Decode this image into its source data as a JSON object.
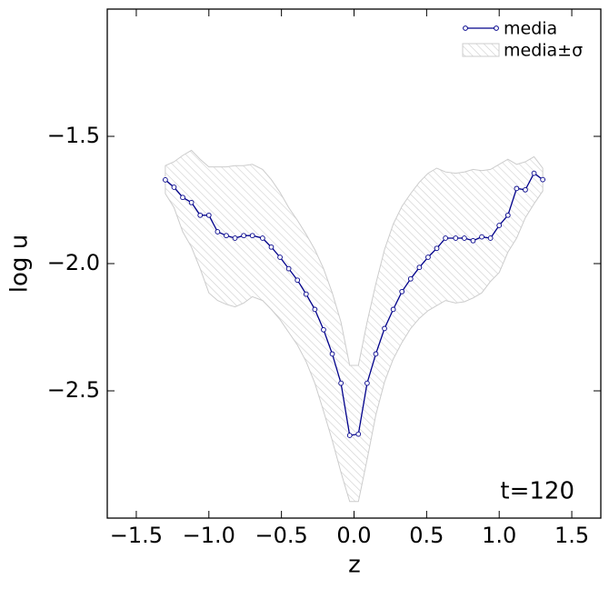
{
  "chart_data": {
    "type": "line_band",
    "xlabel": "z",
    "ylabel": "log u",
    "annotation": "t=120",
    "x": [
      -1.3,
      -1.24,
      -1.18,
      -1.12,
      -1.06,
      -1.0,
      -0.94,
      -0.88,
      -0.82,
      -0.76,
      -0.7,
      -0.63,
      -0.57,
      -0.51,
      -0.45,
      -0.39,
      -0.33,
      -0.27,
      -0.21,
      -0.15,
      -0.09,
      -0.03,
      0.03,
      0.09,
      0.15,
      0.21,
      0.27,
      0.33,
      0.39,
      0.45,
      0.51,
      0.57,
      0.63,
      0.7,
      0.76,
      0.82,
      0.88,
      0.94,
      1.0,
      1.06,
      1.12,
      1.18,
      1.24,
      1.3
    ],
    "series": [
      {
        "name": "media",
        "color": "#00008b",
        "values": [
          -1.671,
          -1.7,
          -1.74,
          -1.76,
          -1.81,
          -1.81,
          -1.875,
          -1.89,
          -1.9,
          -1.89,
          -1.89,
          -1.9,
          -1.935,
          -1.975,
          -2.02,
          -2.065,
          -2.12,
          -2.18,
          -2.26,
          -2.355,
          -2.47,
          -2.675,
          -2.67,
          -2.47,
          -2.355,
          -2.255,
          -2.18,
          -2.11,
          -2.06,
          -2.015,
          -1.975,
          -1.94,
          -1.9,
          -1.9,
          -1.9,
          -1.91,
          -1.895,
          -1.9,
          -1.85,
          -1.81,
          -1.705,
          -1.71,
          -1.645,
          -1.67
        ]
      },
      {
        "name": "media±σ",
        "color": "#cccccc",
        "upper": [
          -1.615,
          -1.6,
          -1.575,
          -1.555,
          -1.59,
          -1.62,
          -1.62,
          -1.62,
          -1.615,
          -1.615,
          -1.61,
          -1.63,
          -1.67,
          -1.72,
          -1.78,
          -1.83,
          -1.885,
          -1.945,
          -2.02,
          -2.115,
          -2.23,
          -2.4,
          -2.4,
          -2.23,
          -2.08,
          -1.945,
          -1.845,
          -1.775,
          -1.725,
          -1.68,
          -1.645,
          -1.625,
          -1.64,
          -1.645,
          -1.64,
          -1.63,
          -1.635,
          -1.63,
          -1.61,
          -1.59,
          -1.61,
          -1.6,
          -1.58,
          -1.625
        ],
        "lower": [
          -1.725,
          -1.78,
          -1.875,
          -1.935,
          -2.02,
          -2.115,
          -2.145,
          -2.16,
          -2.17,
          -2.155,
          -2.13,
          -2.145,
          -2.18,
          -2.22,
          -2.27,
          -2.32,
          -2.385,
          -2.47,
          -2.58,
          -2.695,
          -2.82,
          -2.935,
          -2.935,
          -2.77,
          -2.595,
          -2.465,
          -2.375,
          -2.31,
          -2.255,
          -2.215,
          -2.185,
          -2.165,
          -2.145,
          -2.155,
          -2.15,
          -2.135,
          -2.115,
          -2.07,
          -2.035,
          -1.955,
          -1.9,
          -1.82,
          -1.765,
          -1.715
        ]
      }
    ],
    "xlim": [
      -1.7,
      1.7
    ],
    "ylim": [
      -3.0,
      -1.0
    ],
    "xticks": [
      {
        "value": -1.5,
        "label": "−1.5"
      },
      {
        "value": -1.0,
        "label": "−1.0"
      },
      {
        "value": -0.5,
        "label": "−0.5"
      },
      {
        "value": 0,
        "label": "0.0"
      },
      0.5,
      {
        "value": 1,
        "label": "1.0"
      },
      1.5
    ],
    "yticks": [
      {
        "value": -2.5,
        "label": "−2.5"
      },
      {
        "value": -2.0,
        "label": "−2.0"
      },
      {
        "value": -1.5,
        "label": "−1.5"
      }
    ],
    "legend": "upper right"
  }
}
